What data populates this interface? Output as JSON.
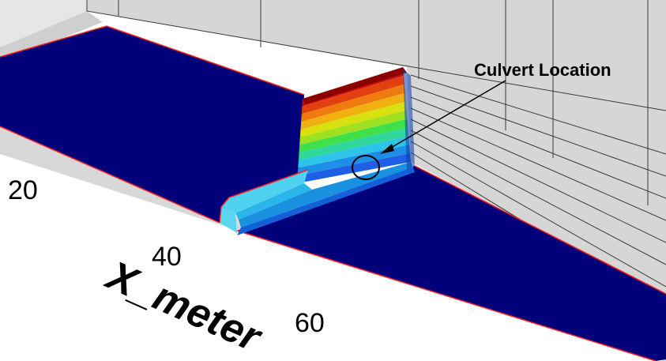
{
  "annotation": {
    "label": "Culvert Location"
  },
  "axis": {
    "title": "X_meter",
    "ticks": [
      "20",
      "40",
      "60"
    ]
  },
  "colors": {
    "floor": "#00007a",
    "floor_edge": "#ff2020",
    "wall": "#d2d2d2",
    "wall_lines": "#3a3a3a",
    "contour_bands": [
      "#1f5fe6",
      "#1e8fe6",
      "#2ec3e8",
      "#2fd89a",
      "#3fe04a",
      "#9fe020",
      "#d8e010",
      "#f0b010",
      "#ef7a10",
      "#e34010",
      "#c60f0f"
    ]
  },
  "icons": {
    "marker": "culvert-circle-marker",
    "arrow": "leader-arrow"
  }
}
